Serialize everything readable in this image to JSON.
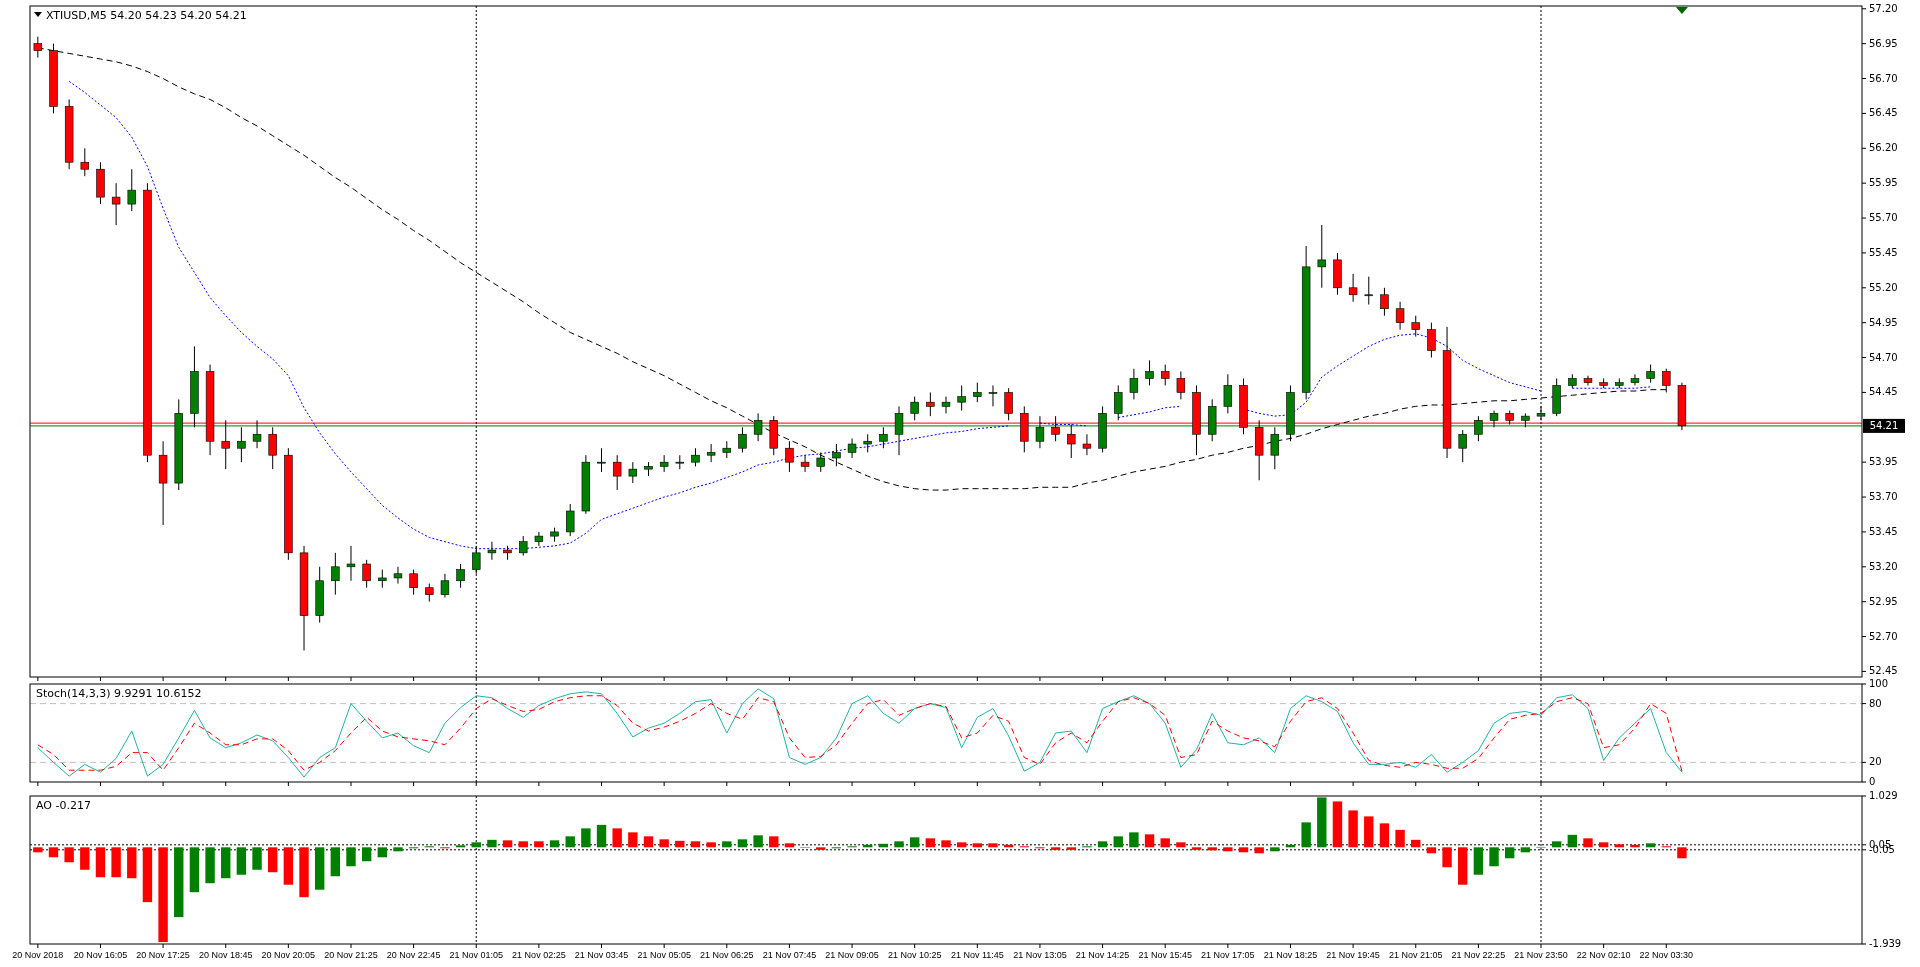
{
  "chart_data": [
    {
      "type": "candlestick",
      "title": "XTIUSD,M5  54.20 54.23 54.20 54.21",
      "categories": [
        "20 Nov 2018",
        null,
        null,
        null,
        "20 Nov 16:05",
        null,
        null,
        null,
        "20 Nov 17:25",
        null,
        null,
        null,
        "20 Nov 18:45",
        null,
        null,
        null,
        "20 Nov 20:05",
        null,
        null,
        null,
        "20 Nov 21:25",
        null,
        null,
        null,
        "20 Nov 22:45",
        null,
        null,
        null,
        "21 Nov 01:05",
        null,
        null,
        null,
        "21 Nov 02:25",
        null,
        null,
        null,
        "21 Nov 03:45",
        null,
        null,
        null,
        "21 Nov 05:05",
        null,
        null,
        null,
        "21 Nov 06:25",
        null,
        null,
        null,
        "21 Nov 07:45",
        null,
        null,
        null,
        "21 Nov 09:05",
        null,
        null,
        null,
        "21 Nov 10:25",
        null,
        null,
        null,
        "21 Nov 11:45",
        null,
        null,
        null,
        "21 Nov 13:05",
        null,
        null,
        null,
        "21 Nov 14:25",
        null,
        null,
        null,
        "21 Nov 15:45",
        null,
        null,
        null,
        "21 Nov 17:05",
        null,
        null,
        null,
        "21 Nov 18:25",
        null,
        null,
        null,
        "21 Nov 19:45",
        null,
        null,
        null,
        "21 Nov 21:05",
        null,
        null,
        null,
        "21 Nov 22:25",
        null,
        null,
        null,
        "21 Nov 23:50",
        null,
        null,
        null,
        "22 Nov 02:10",
        null,
        null,
        null,
        "22 Nov 03:30",
        null,
        null,
        null,
        null,
        null,
        null,
        null,
        null,
        null,
        null,
        null,
        null
      ],
      "ohlc": [
        [
          56.95,
          57.0,
          56.85,
          56.9
        ],
        [
          56.9,
          56.95,
          56.45,
          56.5
        ],
        [
          56.5,
          56.55,
          56.05,
          56.1
        ],
        [
          56.1,
          56.2,
          56.0,
          56.05
        ],
        [
          56.05,
          56.1,
          55.8,
          55.85
        ],
        [
          55.85,
          55.95,
          55.65,
          55.8
        ],
        [
          55.8,
          56.05,
          55.75,
          55.9
        ],
        [
          55.9,
          55.95,
          53.95,
          54.0
        ],
        [
          54.0,
          54.1,
          53.5,
          53.8
        ],
        [
          53.8,
          54.4,
          53.75,
          54.3
        ],
        [
          54.3,
          54.78,
          54.2,
          54.6
        ],
        [
          54.6,
          54.65,
          54.0,
          54.1
        ],
        [
          54.1,
          54.25,
          53.9,
          54.05
        ],
        [
          54.05,
          54.2,
          53.95,
          54.1
        ],
        [
          54.1,
          54.25,
          54.05,
          54.15
        ],
        [
          54.15,
          54.2,
          53.9,
          54.0
        ],
        [
          54.0,
          54.05,
          53.25,
          53.3
        ],
        [
          53.3,
          53.35,
          52.6,
          52.85
        ],
        [
          52.85,
          53.2,
          52.8,
          53.1
        ],
        [
          53.1,
          53.3,
          53.0,
          53.2
        ],
        [
          53.2,
          53.35,
          53.1,
          53.22
        ],
        [
          53.22,
          53.25,
          53.05,
          53.1
        ],
        [
          53.1,
          53.18,
          53.05,
          53.12
        ],
        [
          53.12,
          53.2,
          53.08,
          53.15
        ],
        [
          53.15,
          53.18,
          53.0,
          53.05
        ],
        [
          53.05,
          53.08,
          52.95,
          53.0
        ],
        [
          53.0,
          53.15,
          52.98,
          53.1
        ],
        [
          53.1,
          53.22,
          53.05,
          53.18
        ],
        [
          53.18,
          53.35,
          53.15,
          53.3
        ],
        [
          53.3,
          53.38,
          53.25,
          53.32
        ],
        [
          53.32,
          53.35,
          53.25,
          53.3
        ],
        [
          53.3,
          53.42,
          53.28,
          53.38
        ],
        [
          53.38,
          53.45,
          53.35,
          53.42
        ],
        [
          53.42,
          53.48,
          53.38,
          53.45
        ],
        [
          53.45,
          53.65,
          53.42,
          53.6
        ],
        [
          53.6,
          54.0,
          53.58,
          53.95
        ],
        [
          53.95,
          54.05,
          53.88,
          53.95
        ],
        [
          53.95,
          54.0,
          53.75,
          53.85
        ],
        [
          53.85,
          53.95,
          53.8,
          53.9
        ],
        [
          53.9,
          53.95,
          53.85,
          53.92
        ],
        [
          53.92,
          54.0,
          53.88,
          53.95
        ],
        [
          53.95,
          54.0,
          53.9,
          53.95
        ],
        [
          53.95,
          54.05,
          53.92,
          54.0
        ],
        [
          54.0,
          54.08,
          53.95,
          54.02
        ],
        [
          54.02,
          54.1,
          53.98,
          54.05
        ],
        [
          54.05,
          54.2,
          54.02,
          54.15
        ],
        [
          54.15,
          54.3,
          54.1,
          54.25
        ],
        [
          54.25,
          54.28,
          54.0,
          54.05
        ],
        [
          54.05,
          54.1,
          53.88,
          53.95
        ],
        [
          53.95,
          54.0,
          53.88,
          53.92
        ],
        [
          53.92,
          54.02,
          53.88,
          53.98
        ],
        [
          53.98,
          54.08,
          53.92,
          54.02
        ],
        [
          54.02,
          54.12,
          53.98,
          54.08
        ],
        [
          54.08,
          54.15,
          54.02,
          54.1
        ],
        [
          54.1,
          54.2,
          54.05,
          54.15
        ],
        [
          54.15,
          54.35,
          54.0,
          54.3
        ],
        [
          54.3,
          54.42,
          54.25,
          54.38
        ],
        [
          54.38,
          54.45,
          54.28,
          54.35
        ],
        [
          54.35,
          54.42,
          54.3,
          54.38
        ],
        [
          54.38,
          54.5,
          54.32,
          54.42
        ],
        [
          54.42,
          54.52,
          54.38,
          54.45
        ],
        [
          54.45,
          54.5,
          54.35,
          54.45
        ],
        [
          54.45,
          54.48,
          54.25,
          54.3
        ],
        [
          54.3,
          54.35,
          54.02,
          54.1
        ],
        [
          54.1,
          54.28,
          54.05,
          54.2
        ],
        [
          54.2,
          54.28,
          54.1,
          54.15
        ],
        [
          54.15,
          54.22,
          53.98,
          54.08
        ],
        [
          54.08,
          54.15,
          54.0,
          54.05
        ],
        [
          54.05,
          54.35,
          54.02,
          54.3
        ],
        [
          54.3,
          54.5,
          54.25,
          54.45
        ],
        [
          54.45,
          54.62,
          54.4,
          54.55
        ],
        [
          54.55,
          54.68,
          54.5,
          54.6
        ],
        [
          54.6,
          54.65,
          54.5,
          54.55
        ],
        [
          54.55,
          54.6,
          54.4,
          54.45
        ],
        [
          54.45,
          54.5,
          54.0,
          54.15
        ],
        [
          54.15,
          54.4,
          54.1,
          54.35
        ],
        [
          54.35,
          54.58,
          54.3,
          54.5
        ],
        [
          54.5,
          54.55,
          54.15,
          54.2
        ],
        [
          54.2,
          54.25,
          53.82,
          54.0
        ],
        [
          54.0,
          54.2,
          53.9,
          54.15
        ],
        [
          54.15,
          54.5,
          54.1,
          54.45
        ],
        [
          54.45,
          55.5,
          54.4,
          55.35
        ],
        [
          55.35,
          55.65,
          55.2,
          55.4
        ],
        [
          55.4,
          55.45,
          55.15,
          55.2
        ],
        [
          55.2,
          55.3,
          55.1,
          55.15
        ],
        [
          55.15,
          55.28,
          55.08,
          55.15
        ],
        [
          55.15,
          55.2,
          55.0,
          55.05
        ],
        [
          55.05,
          55.1,
          54.9,
          54.95
        ],
        [
          54.95,
          55.0,
          54.85,
          54.9
        ],
        [
          54.9,
          54.95,
          54.7,
          54.75
        ],
        [
          54.75,
          54.92,
          53.98,
          54.05
        ],
        [
          54.05,
          54.18,
          53.95,
          54.15
        ],
        [
          54.15,
          54.28,
          54.1,
          54.25
        ],
        [
          54.25,
          54.32,
          54.2,
          54.3
        ],
        [
          54.3,
          54.32,
          54.22,
          54.25
        ],
        [
          54.25,
          54.3,
          54.2,
          54.28
        ],
        [
          54.28,
          54.35,
          54.25,
          54.3
        ],
        [
          54.3,
          54.55,
          54.28,
          54.5
        ],
        [
          54.5,
          54.58,
          54.48,
          54.55
        ],
        [
          54.55,
          54.57,
          54.5,
          54.52
        ],
        [
          54.52,
          54.55,
          54.48,
          54.5
        ],
        [
          54.5,
          54.55,
          54.48,
          54.52
        ],
        [
          54.52,
          54.58,
          54.5,
          54.55
        ],
        [
          54.55,
          54.65,
          54.52,
          54.6
        ],
        [
          54.6,
          54.62,
          54.45,
          54.5
        ],
        [
          54.5,
          54.52,
          54.18,
          54.21
        ],
        null,
        null,
        null,
        null,
        null,
        null,
        null,
        null,
        null,
        null,
        null
      ],
      "series": [
        {
          "type": "line",
          "color": "#0000ff",
          "line_style": "dotted",
          "values": [
            null,
            null,
            56.68,
            56.6,
            56.51,
            56.42,
            56.28,
            56.07,
            55.77,
            55.49,
            55.31,
            55.13,
            55.0,
            54.88,
            54.78,
            54.69,
            54.57,
            54.34,
            54.16,
            54.01,
            53.88,
            53.76,
            53.64,
            53.55,
            53.47,
            53.41,
            53.38,
            53.35,
            53.33,
            53.33,
            53.33,
            53.33,
            53.34,
            53.35,
            53.37,
            53.44,
            53.54,
            53.58,
            53.62,
            53.66,
            53.7,
            53.73,
            53.77,
            53.8,
            53.84,
            53.88,
            53.93,
            53.95,
            53.98,
            54.0,
            54.01,
            54.03,
            54.05,
            54.06,
            54.08,
            54.1,
            54.12,
            54.14,
            54.16,
            54.17,
            54.19,
            54.2,
            54.21,
            null,
            54.23,
            54.22,
            54.22,
            54.21,
            null,
            54.27,
            54.29,
            54.31,
            54.34,
            54.35,
            null,
            null,
            null,
            54.33,
            54.3,
            54.28,
            54.29,
            54.38,
            54.56,
            54.64,
            54.71,
            54.78,
            54.83,
            54.86,
            54.87,
            54.84,
            54.78,
            54.68,
            54.62,
            54.57,
            54.52,
            54.49,
            54.46,
            null,
            54.48,
            54.48,
            54.48,
            54.48,
            54.48,
            54.49,
            null,
            null,
            null,
            null,
            null,
            null,
            null,
            null,
            null,
            null,
            null,
            null,
            null
          ]
        },
        {
          "type": "line",
          "color": "#000000",
          "line_style": "dashed",
          "values": [
            56.92,
            56.9,
            56.88,
            56.86,
            56.84,
            56.82,
            56.79,
            56.75,
            56.7,
            56.64,
            56.59,
            56.55,
            56.49,
            56.42,
            56.36,
            56.29,
            56.22,
            56.15,
            56.07,
            55.99,
            55.92,
            55.84,
            55.76,
            55.69,
            55.61,
            55.54,
            55.46,
            55.38,
            55.31,
            55.24,
            55.17,
            55.1,
            55.02,
            54.95,
            54.88,
            54.83,
            54.78,
            54.73,
            54.67,
            54.62,
            54.57,
            54.51,
            54.45,
            54.39,
            54.34,
            54.28,
            54.22,
            54.16,
            54.11,
            54.06,
            54.0,
            53.95,
            53.9,
            53.85,
            53.81,
            53.78,
            53.76,
            53.75,
            53.75,
            53.76,
            53.76,
            53.76,
            53.76,
            53.76,
            53.77,
            53.77,
            53.77,
            53.8,
            53.82,
            53.85,
            53.88,
            53.9,
            53.92,
            53.95,
            53.97,
            54.0,
            54.02,
            54.05,
            54.07,
            54.1,
            54.12,
            54.15,
            54.19,
            54.22,
            54.25,
            54.28,
            54.3,
            54.33,
            54.35,
            54.36,
            54.36,
            54.37,
            54.38,
            54.39,
            54.39,
            54.4,
            54.41,
            54.42,
            54.43,
            54.44,
            54.45,
            54.46,
            54.46,
            54.47,
            54.47,
            null,
            null,
            null,
            null,
            null,
            null,
            null,
            null,
            null,
            null,
            null,
            null
          ]
        }
      ],
      "ylim": [
        52.41,
        57.22
      ],
      "yticks": [
        {
          "value": 57.2,
          "label": "57.20"
        },
        56.95,
        {
          "value": 56.7,
          "label": "56.70"
        },
        56.45,
        {
          "value": 56.2,
          "label": "56.20"
        },
        55.95,
        {
          "value": 55.7,
          "label": "55.70"
        },
        55.45,
        {
          "value": 55.2,
          "label": "55.20"
        },
        54.95,
        {
          "value": 54.7,
          "label": "54.70"
        },
        54.45,
        53.95,
        {
          "value": 53.7,
          "label": "53.70"
        },
        53.45,
        {
          "value": 53.2,
          "label": "53.20"
        },
        52.95,
        {
          "value": 52.7,
          "label": "52.70"
        },
        52.45
      ],
      "ref_lines": [
        {
          "axis": "y",
          "value": 54.23,
          "color": "#ff0000"
        },
        {
          "axis": "y",
          "value": 54.21,
          "label": "54.21",
          "color": "#008000"
        },
        {
          "axis": "x",
          "value": "21 Nov 01:05",
          "color": "#000000",
          "line_style": "dotted"
        },
        {
          "axis": "x",
          "value": "21 Nov 23:50",
          "color": "#000000",
          "line_style": "dotted"
        }
      ],
      "tick_labels": "y"
    },
    {
      "type": "line",
      "title": "Stoch(14,3,3) 9.9291 10.6152",
      "categories": [
        "20 Nov 2018",
        null,
        null,
        null,
        "20 Nov 16:05",
        null,
        null,
        null,
        "20 Nov 17:25",
        null,
        null,
        null,
        "20 Nov 18:45",
        null,
        null,
        null,
        "20 Nov 20:05",
        null,
        null,
        null,
        "20 Nov 21:25",
        null,
        null,
        null,
        "20 Nov 22:45",
        null,
        null,
        null,
        "21 Nov 01:05",
        null,
        null,
        null,
        "21 Nov 02:25",
        null,
        null,
        null,
        "21 Nov 03:45",
        null,
        null,
        null,
        "21 Nov 05:05",
        null,
        null,
        null,
        "21 Nov 06:25",
        null,
        null,
        null,
        "21 Nov 07:45",
        null,
        null,
        null,
        "21 Nov 09:05",
        null,
        null,
        null,
        "21 Nov 10:25",
        null,
        null,
        null,
        "21 Nov 11:45",
        null,
        null,
        null,
        "21 Nov 13:05",
        null,
        null,
        null,
        "21 Nov 14:25",
        null,
        null,
        null,
        "21 Nov 15:45",
        null,
        null,
        null,
        "21 Nov 17:05",
        null,
        null,
        null,
        "21 Nov 18:25",
        null,
        null,
        null,
        "21 Nov 19:45",
        null,
        null,
        null,
        "21 Nov 21:05",
        null,
        null,
        null,
        "21 Nov 22:25",
        null,
        null,
        null,
        "21 Nov 23:50",
        null,
        null,
        null,
        "22 Nov 02:10",
        null,
        null,
        null,
        "22 Nov 03:30",
        null,
        null,
        null,
        null,
        null,
        null,
        null,
        null,
        null,
        null,
        null,
        null
      ],
      "series": [
        {
          "color": "#20b2aa",
          "line_style": "solid",
          "values": [
            35,
            20,
            6,
            18,
            10,
            24,
            52,
            6,
            18,
            45,
            73,
            45,
            35,
            40,
            48,
            42,
            25,
            5,
            25,
            35,
            80,
            62,
            45,
            50,
            37,
            30,
            60,
            76,
            88,
            86,
            75,
            66,
            78,
            85,
            90,
            92,
            90,
            70,
            46,
            55,
            60,
            70,
            82,
            84,
            50,
            80,
            95,
            85,
            25,
            18,
            25,
            45,
            80,
            88,
            70,
            60,
            75,
            80,
            76,
            35,
            66,
            75,
            47,
            11,
            20,
            50,
            52,
            30,
            75,
            82,
            88,
            80,
            60,
            15,
            33,
            70,
            40,
            38,
            45,
            30,
            75,
            88,
            82,
            72,
            40,
            18,
            18,
            20,
            15,
            28,
            10,
            20,
            32,
            60,
            70,
            72,
            68,
            86,
            89,
            75,
            22,
            45,
            60,
            75,
            30,
            10,
            null,
            null,
            null,
            null,
            null,
            null,
            null,
            null,
            null,
            null,
            null
          ]
        },
        {
          "color": "#ff0000",
          "line_style": "dashed",
          "values": [
            38,
            28,
            12,
            12,
            12,
            16,
            30,
            30,
            12,
            35,
            60,
            50,
            38,
            38,
            44,
            44,
            32,
            12,
            20,
            32,
            50,
            66,
            52,
            46,
            44,
            42,
            38,
            55,
            75,
            85,
            78,
            72,
            74,
            82,
            86,
            88,
            88,
            78,
            60,
            52,
            56,
            62,
            70,
            80,
            70,
            64,
            86,
            82,
            45,
            25,
            26,
            38,
            60,
            80,
            84,
            68,
            75,
            80,
            77,
            45,
            50,
            68,
            62,
            25,
            18,
            40,
            50,
            40,
            62,
            82,
            86,
            80,
            68,
            25,
            28,
            62,
            52,
            45,
            42,
            36,
            62,
            82,
            86,
            75,
            50,
            22,
            17,
            15,
            20,
            18,
            14,
            14,
            24,
            45,
            64,
            68,
            70,
            82,
            86,
            80,
            35,
            38,
            55,
            80,
            70,
            11,
            null,
            null,
            null,
            null,
            null,
            null,
            null,
            null,
            null,
            null,
            null
          ]
        }
      ],
      "ylim": [
        0,
        100
      ],
      "yticks": [
        100,
        80,
        20,
        0
      ],
      "ref_lines": [
        {
          "axis": "y",
          "value": 80,
          "color": "#c0c0c0",
          "line_style": "dashed"
        },
        {
          "axis": "y",
          "value": 20,
          "color": "#c0c0c0",
          "line_style": "dashed"
        },
        {
          "axis": "x",
          "value": "21 Nov 01:05",
          "color": "#000000",
          "line_style": "dotted"
        },
        {
          "axis": "x",
          "value": "21 Nov 23:50",
          "color": "#000000",
          "line_style": "dotted"
        }
      ],
      "tick_labels": "y"
    },
    {
      "type": "bar",
      "title": "AO -0.217",
      "categories": [
        "20 Nov 2018",
        null,
        null,
        null,
        "20 Nov 16:05",
        null,
        null,
        null,
        "20 Nov 17:25",
        null,
        null,
        null,
        "20 Nov 18:45",
        null,
        null,
        null,
        "20 Nov 20:05",
        null,
        null,
        null,
        "20 Nov 21:25",
        null,
        null,
        null,
        "20 Nov 22:45",
        null,
        null,
        null,
        "21 Nov 01:05",
        null,
        null,
        null,
        "21 Nov 02:25",
        null,
        null,
        null,
        "21 Nov 03:45",
        null,
        null,
        null,
        "21 Nov 05:05",
        null,
        null,
        null,
        "21 Nov 06:25",
        null,
        null,
        null,
        "21 Nov 07:45",
        null,
        null,
        null,
        "21 Nov 09:05",
        null,
        null,
        null,
        "21 Nov 10:25",
        null,
        null,
        null,
        "21 Nov 11:45",
        null,
        null,
        null,
        "21 Nov 13:05",
        null,
        null,
        null,
        "21 Nov 14:25",
        null,
        null,
        null,
        "21 Nov 15:45",
        null,
        null,
        null,
        "21 Nov 17:05",
        null,
        null,
        null,
        "21 Nov 18:25",
        null,
        null,
        null,
        "21 Nov 19:45",
        null,
        null,
        null,
        "21 Nov 21:05",
        null,
        null,
        null,
        "21 Nov 22:25",
        null,
        null,
        null,
        "21 Nov 23:50",
        null,
        null,
        null,
        "22 Nov 02:10",
        null,
        null,
        null,
        "22 Nov 03:30",
        null,
        null,
        null,
        null,
        null,
        null,
        null,
        null,
        null,
        null,
        null,
        null
      ],
      "values": [
        -0.1,
        -0.2,
        -0.3,
        -0.45,
        -0.6,
        -0.6,
        -0.62,
        -1.1,
        -1.9,
        -1.4,
        -0.9,
        -0.72,
        -0.62,
        -0.55,
        -0.45,
        -0.5,
        -0.75,
        -1.0,
        -0.85,
        -0.58,
        -0.38,
        -0.28,
        -0.2,
        -0.08,
        -0.02,
        0.02,
        -0.02,
        0.04,
        0.1,
        0.15,
        0.14,
        0.12,
        0.12,
        0.14,
        0.22,
        0.38,
        0.45,
        0.38,
        0.3,
        0.22,
        0.16,
        0.13,
        0.12,
        0.1,
        0.12,
        0.16,
        0.24,
        0.22,
        0.08,
        0.0,
        -0.05,
        -0.02,
        0.02,
        0.05,
        0.07,
        0.12,
        0.2,
        0.18,
        0.14,
        0.1,
        0.08,
        0.08,
        0.05,
        0.02,
        -0.02,
        -0.05,
        -0.05,
        0.02,
        0.12,
        0.22,
        0.3,
        0.26,
        0.18,
        0.1,
        -0.05,
        -0.06,
        -0.08,
        -0.1,
        -0.12,
        -0.08,
        0.05,
        0.5,
        1.0,
        0.92,
        0.74,
        0.62,
        0.48,
        0.35,
        0.15,
        -0.12,
        -0.4,
        -0.75,
        -0.55,
        -0.38,
        -0.22,
        -0.1,
        0.0,
        0.12,
        0.25,
        0.18,
        0.1,
        0.06,
        0.05,
        0.08,
        0.02,
        -0.22,
        null,
        null,
        null,
        null,
        null,
        null,
        null,
        null,
        null,
        null,
        null
      ],
      "colors": [
        "#ff0000",
        "#ff0000",
        "#ff0000",
        "#ff0000",
        "#ff0000",
        "#ff0000",
        "#ff0000",
        "#ff0000",
        "#ff0000",
        "#008000",
        "#008000",
        "#008000",
        "#008000",
        "#008000",
        "#008000",
        "#ff0000",
        "#ff0000",
        "#ff0000",
        "#008000",
        "#008000",
        "#008000",
        "#008000",
        "#008000",
        "#008000",
        "#008000",
        "#008000",
        "#ff0000",
        "#008000",
        "#008000",
        "#008000",
        "#ff0000",
        "#ff0000",
        "#ff0000",
        "#008000",
        "#008000",
        "#008000",
        "#008000",
        "#ff0000",
        "#ff0000",
        "#ff0000",
        "#ff0000",
        "#ff0000",
        "#ff0000",
        "#ff0000",
        "#008000",
        "#008000",
        "#008000",
        "#ff0000",
        "#ff0000",
        "#ff0000",
        "#ff0000",
        "#008000",
        "#008000",
        "#008000",
        "#008000",
        "#008000",
        "#008000",
        "#ff0000",
        "#ff0000",
        "#ff0000",
        "#ff0000",
        "#ff0000",
        "#ff0000",
        "#ff0000",
        "#ff0000",
        "#ff0000",
        "#ff0000",
        "#008000",
        "#008000",
        "#008000",
        "#008000",
        "#ff0000",
        "#ff0000",
        "#ff0000",
        "#ff0000",
        "#ff0000",
        "#ff0000",
        "#ff0000",
        "#ff0000",
        "#008000",
        "#008000",
        "#008000",
        "#008000",
        "#ff0000",
        "#ff0000",
        "#ff0000",
        "#ff0000",
        "#ff0000",
        "#ff0000",
        "#ff0000",
        "#ff0000",
        "#ff0000",
        "#008000",
        "#008000",
        "#008000",
        "#008000",
        "#008000",
        "#008000",
        "#008000",
        "#ff0000",
        "#ff0000",
        "#ff0000",
        "#ff0000",
        "#008000",
        "#ff0000",
        "#ff0000",
        null,
        null,
        null,
        null,
        null,
        null,
        null,
        null,
        null,
        null,
        null
      ],
      "ylim": [
        -1.939,
        1.029
      ],
      "yticks": [
        1.029,
        0.05,
        -0.05,
        -1.939
      ],
      "ref_lines": [
        {
          "axis": "y",
          "value": 0.05,
          "color": "#000000",
          "line_style": "dotted"
        },
        {
          "axis": "y",
          "value": -0.05,
          "color": "#000000",
          "line_style": "dotted"
        },
        {
          "axis": "x",
          "value": "21 Nov 01:05",
          "color": "#000000",
          "line_style": "dotted"
        },
        {
          "axis": "x",
          "value": "21 Nov 23:50",
          "color": "#000000",
          "line_style": "dotted"
        }
      ]
    }
  ]
}
